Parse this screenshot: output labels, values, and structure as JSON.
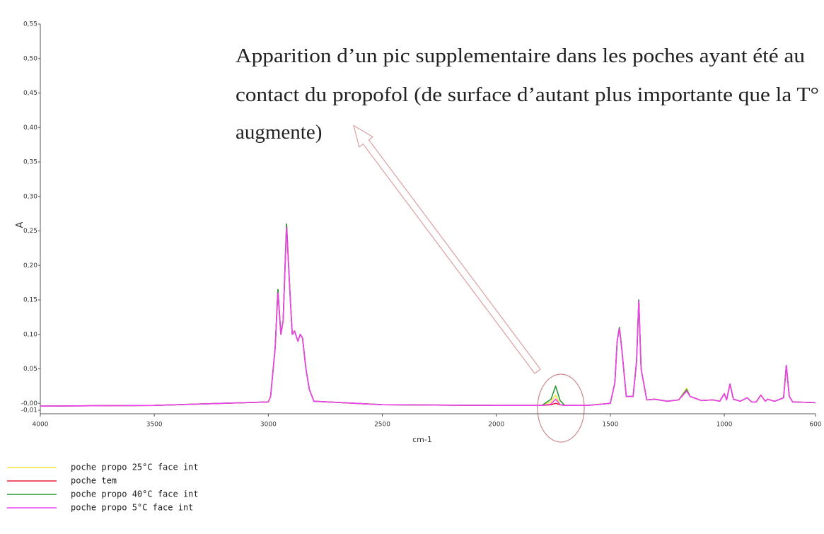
{
  "chart_data": {
    "type": "line",
    "annotation": [
      "Apparition d’un pic supplementaire dans les poches ayant été au",
      "contact du propofol (de surface d’autant plus importante que la T°",
      "augmente)"
    ],
    "x_label": "cm-1",
    "y_label": "A",
    "xlim": [
      4000,
      600
    ],
    "ylim": [
      -0.01,
      0.55
    ],
    "xticks": [
      4000,
      3500,
      3000,
      2500,
      2000,
      1500,
      1000,
      600
    ],
    "yticks": [
      {
        "value": 0.55,
        "label": "0,55"
      },
      {
        "value": 0.5,
        "label": "0,50"
      },
      {
        "value": 0.45,
        "label": "0,45"
      },
      {
        "value": 0.4,
        "label": "0,40"
      },
      {
        "value": 0.35,
        "label": "0,35"
      },
      {
        "value": 0.3,
        "label": "0,30"
      },
      {
        "value": 0.25,
        "label": "0,25"
      },
      {
        "value": 0.2,
        "label": "0,20"
      },
      {
        "value": 0.15,
        "label": "0,15"
      },
      {
        "value": 0.1,
        "label": "0,10"
      },
      {
        "value": 0.05,
        "label": "0,05"
      },
      {
        "value": 0.0,
        "label": "-0,00"
      },
      {
        "value": -0.01,
        "label": "-0,01"
      }
    ],
    "x": [
      4000,
      3500,
      3000,
      2990,
      2970,
      2958,
      2945,
      2935,
      2920,
      2905,
      2895,
      2885,
      2870,
      2860,
      2850,
      2835,
      2820,
      2800,
      2500,
      2000,
      1800,
      1760,
      1740,
      1720,
      1700,
      1600,
      1500,
      1480,
      1470,
      1460,
      1450,
      1430,
      1400,
      1385,
      1375,
      1365,
      1340,
      1305,
      1250,
      1200,
      1165,
      1150,
      1100,
      1050,
      1020,
      1000,
      990,
      975,
      960,
      930,
      900,
      880,
      860,
      840,
      820,
      810,
      780,
      740,
      728,
      715,
      700,
      600
    ],
    "series": [
      {
        "name": "poche propo 25°C face int",
        "color": "#f2e23c",
        "values": [
          -0.004,
          -0.003,
          0.002,
          0.01,
          0.08,
          0.165,
          0.1,
          0.12,
          0.26,
          0.16,
          0.1,
          0.105,
          0.09,
          0.1,
          0.095,
          0.05,
          0.02,
          0.003,
          -0.002,
          -0.003,
          -0.003,
          0.002,
          0.012,
          -0.002,
          -0.003,
          -0.003,
          0.0,
          0.03,
          0.09,
          0.11,
          0.08,
          0.01,
          0.01,
          0.06,
          0.15,
          0.05,
          0.005,
          0.006,
          0.003,
          0.005,
          0.022,
          0.01,
          0.004,
          0.005,
          0.003,
          0.014,
          0.005,
          0.028,
          0.006,
          0.003,
          0.008,
          0.002,
          0.002,
          0.012,
          0.003,
          0.006,
          0.003,
          0.008,
          0.055,
          0.01,
          0.002,
          0.001
        ]
      },
      {
        "name": "poche tem",
        "color": "#e8203a",
        "values": [
          -0.004,
          -0.003,
          0.002,
          0.01,
          0.08,
          0.165,
          0.1,
          0.12,
          0.26,
          0.16,
          0.1,
          0.105,
          0.09,
          0.1,
          0.095,
          0.05,
          0.02,
          0.003,
          -0.002,
          -0.003,
          -0.003,
          -0.002,
          0.0,
          -0.002,
          -0.003,
          -0.003,
          0.0,
          0.03,
          0.09,
          0.11,
          0.08,
          0.01,
          0.01,
          0.06,
          0.15,
          0.05,
          0.005,
          0.006,
          0.003,
          0.005,
          0.018,
          0.01,
          0.004,
          0.005,
          0.003,
          0.014,
          0.005,
          0.028,
          0.006,
          0.003,
          0.008,
          0.002,
          0.002,
          0.012,
          0.003,
          0.006,
          0.003,
          0.008,
          0.055,
          0.01,
          0.002,
          0.001
        ]
      },
      {
        "name": "poche propo 40°C face int",
        "color": "#2a9a3a",
        "values": [
          -0.004,
          -0.003,
          0.002,
          0.01,
          0.08,
          0.165,
          0.1,
          0.12,
          0.26,
          0.16,
          0.1,
          0.105,
          0.09,
          0.1,
          0.095,
          0.05,
          0.02,
          0.003,
          -0.002,
          -0.003,
          -0.003,
          0.006,
          0.025,
          0.004,
          -0.003,
          -0.003,
          0.0,
          0.03,
          0.09,
          0.11,
          0.08,
          0.01,
          0.01,
          0.06,
          0.15,
          0.05,
          0.005,
          0.006,
          0.003,
          0.005,
          0.02,
          0.01,
          0.004,
          0.005,
          0.003,
          0.014,
          0.005,
          0.028,
          0.006,
          0.003,
          0.008,
          0.002,
          0.002,
          0.012,
          0.003,
          0.006,
          0.003,
          0.008,
          0.055,
          0.01,
          0.002,
          0.001
        ]
      },
      {
        "name": "poche propo 5°C face int",
        "color": "#f040f0",
        "values": [
          -0.004,
          -0.003,
          0.002,
          0.01,
          0.08,
          0.16,
          0.1,
          0.12,
          0.255,
          0.16,
          0.1,
          0.105,
          0.09,
          0.1,
          0.095,
          0.05,
          0.02,
          0.003,
          -0.002,
          -0.003,
          -0.003,
          -0.001,
          0.006,
          -0.002,
          -0.003,
          -0.003,
          0.0,
          0.03,
          0.09,
          0.108,
          0.08,
          0.01,
          0.01,
          0.06,
          0.148,
          0.05,
          0.005,
          0.006,
          0.003,
          0.005,
          0.018,
          0.01,
          0.004,
          0.005,
          0.003,
          0.014,
          0.005,
          0.028,
          0.006,
          0.003,
          0.008,
          0.002,
          0.002,
          0.012,
          0.003,
          0.006,
          0.003,
          0.008,
          0.055,
          0.01,
          0.002,
          0.001
        ]
      }
    ]
  }
}
